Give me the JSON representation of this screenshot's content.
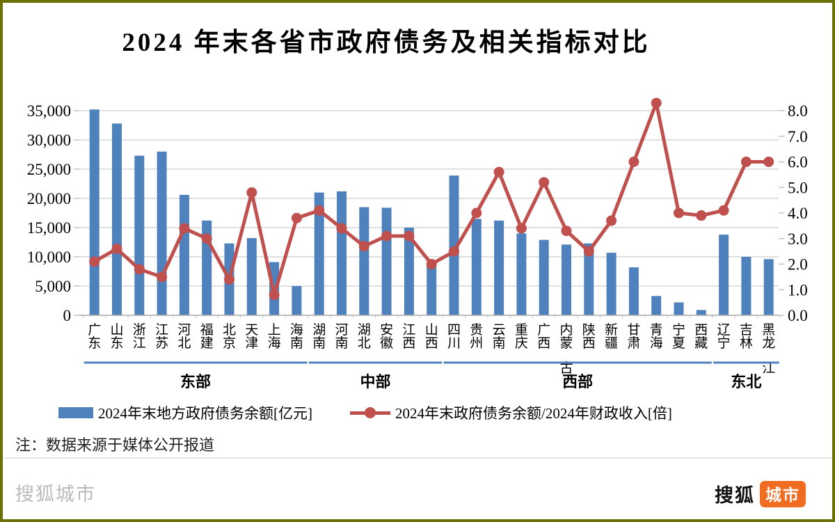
{
  "frame": {
    "border_color": "#6b7000"
  },
  "title": "2024 年末各省市政府债务及相关指标对比",
  "note": "注：数据来源于媒体公开报道",
  "footer": {
    "watermark": "搜狐城市",
    "logo_text_black": "搜狐",
    "logo_text_badge": "城市",
    "logo_badge_color": "#f06c21"
  },
  "chart_data": {
    "type": "bar+line",
    "title": "2024 年末各省市政府债务及相关指标对比",
    "categories": [
      "广东",
      "山东",
      "浙江",
      "江苏",
      "河北",
      "福建",
      "北京",
      "天津",
      "上海",
      "海南",
      "湖南",
      "河南",
      "湖北",
      "安徽",
      "江西",
      "山西",
      "四川",
      "贵州",
      "云南",
      "重庆",
      "广西",
      "内蒙古",
      "陕西",
      "新疆",
      "甘肃",
      "青海",
      "宁夏",
      "西藏",
      "辽宁",
      "吉林",
      "黑龙江"
    ],
    "groups": [
      {
        "label": "东部",
        "count": 10
      },
      {
        "label": "中部",
        "count": 6
      },
      {
        "label": "西部",
        "count": 12
      },
      {
        "label": "东北",
        "count": 3
      }
    ],
    "series": [
      {
        "name": "2024年末地方政府债务余额[亿元]",
        "type": "bar",
        "axis": "left",
        "color": "#4f81bd",
        "values": [
          35200,
          32800,
          27300,
          28000,
          20600,
          16200,
          12300,
          13200,
          9100,
          5000,
          21000,
          21200,
          18500,
          18400,
          15000,
          8600,
          23900,
          16500,
          16200,
          14000,
          12900,
          12100,
          12300,
          10700,
          8200,
          3300,
          2200,
          900,
          13800,
          10000,
          9600
        ]
      },
      {
        "name": "2024年末政府债务余额/2024年财政收入[倍]",
        "type": "line",
        "axis": "right",
        "color": "#c0504d",
        "values": [
          2.1,
          2.6,
          1.8,
          1.5,
          3.4,
          3.0,
          1.4,
          4.8,
          0.8,
          3.8,
          4.1,
          3.4,
          2.7,
          3.1,
          3.1,
          2.0,
          2.5,
          4.0,
          5.6,
          3.4,
          5.2,
          3.3,
          2.5,
          3.7,
          6.0,
          8.3,
          4.0,
          3.9,
          4.1,
          6.0,
          6.0
        ]
      }
    ],
    "left_axis": {
      "min": 0,
      "max": 35000,
      "step": 5000,
      "tick_labels_top_down": [
        "35,000",
        "30,000",
        "25,000",
        "20,000",
        "15,000",
        "10,000",
        "5,000",
        "0"
      ]
    },
    "right_axis": {
      "min": 0,
      "max": 8,
      "step": 1,
      "tick_labels_top_down": [
        "8.0",
        "7.0",
        "6.0",
        "5.0",
        "4.0",
        "3.0",
        "2.0",
        "1.0",
        "0.0"
      ]
    },
    "grid": true,
    "legend_position": "bottom",
    "colors": {
      "gridline": "#d6d6d6",
      "baseline": "#a8a8a8",
      "tick": "#bfbfbf",
      "group_underline": "#4f81bd"
    }
  }
}
